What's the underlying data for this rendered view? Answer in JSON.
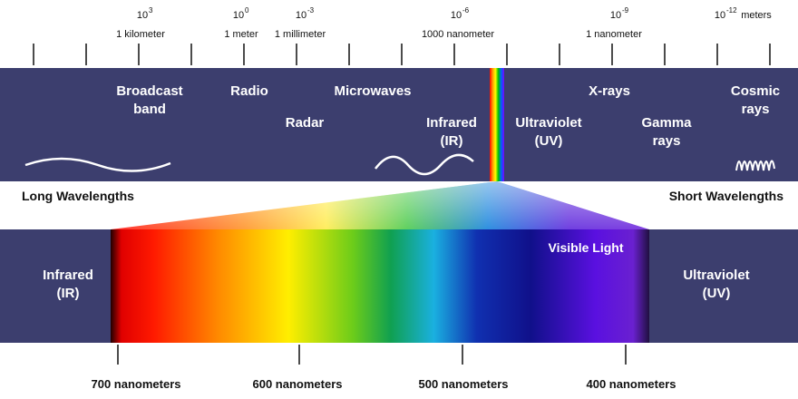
{
  "scale": [
    {
      "base": "10",
      "exponent": "3",
      "label": "1 kilometer"
    },
    {
      "base": "10",
      "exponent": "0",
      "label": "1 meter"
    },
    {
      "base": "10",
      "exponent": "-3",
      "label": "1 millimeter"
    },
    {
      "base": "10",
      "exponent": "-6",
      "label": "1000 nanometer"
    },
    {
      "base": "10",
      "exponent": "-9",
      "label": "1 nanometer"
    },
    {
      "base": "10",
      "exponent": "-12",
      "unit": "meters"
    }
  ],
  "bands": [
    {
      "lines": [
        "Broadcast",
        "band"
      ]
    },
    {
      "lines": [
        "Radio"
      ]
    },
    {
      "lines": [
        "Microwaves"
      ]
    },
    {
      "lines": [
        "Radar"
      ]
    },
    {
      "lines": [
        "Infrared",
        "(IR)"
      ]
    },
    {
      "lines": [
        "Ultraviolet",
        "(UV)"
      ]
    },
    {
      "lines": [
        "X-rays"
      ]
    },
    {
      "lines": [
        "Gamma",
        "rays"
      ]
    },
    {
      "lines": [
        "Cosmic",
        "rays"
      ]
    }
  ],
  "long_label": "Long Wavelengths",
  "short_label": "Short Wavelengths",
  "visible": {
    "left": [
      "Infrared",
      "(IR)"
    ],
    "title": "Visible Light",
    "right": [
      "Ultraviolet",
      "(UV)"
    ]
  },
  "wavelengths": [
    "700 nanometers",
    "600 nanometers",
    "500 nanometers",
    "400 nanometers"
  ]
}
